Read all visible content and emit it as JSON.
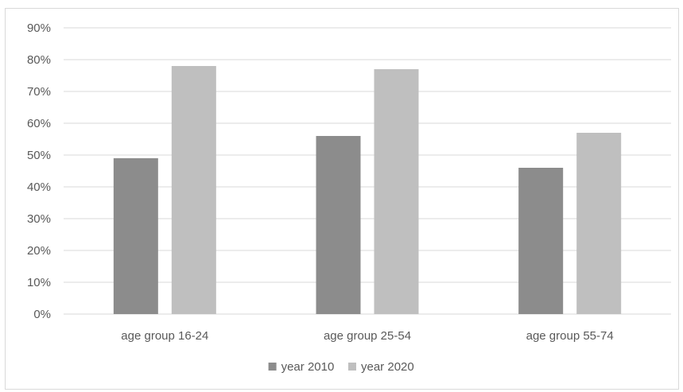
{
  "chart_data": {
    "type": "bar",
    "title": "",
    "xlabel": "",
    "ylabel": "",
    "categories": [
      "age group 16-24",
      "age group 25-54",
      "age group 55-74"
    ],
    "series": [
      {
        "name": "year 2010",
        "values": [
          49,
          56,
          46
        ],
        "color": "#8c8c8c"
      },
      {
        "name": "year 2020",
        "values": [
          78,
          77,
          57
        ],
        "color": "#bfbfbf"
      }
    ],
    "ylim": [
      0,
      90
    ],
    "yticks": [
      0,
      10,
      20,
      30,
      40,
      50,
      60,
      70,
      80,
      90
    ],
    "ytick_labels": [
      "0%",
      "10%",
      "20%",
      "30%",
      "40%",
      "50%",
      "60%",
      "70%",
      "80%",
      "90%"
    ],
    "grid": true,
    "gridline_color": "#d9d9d9",
    "legend_position": "bottom"
  }
}
